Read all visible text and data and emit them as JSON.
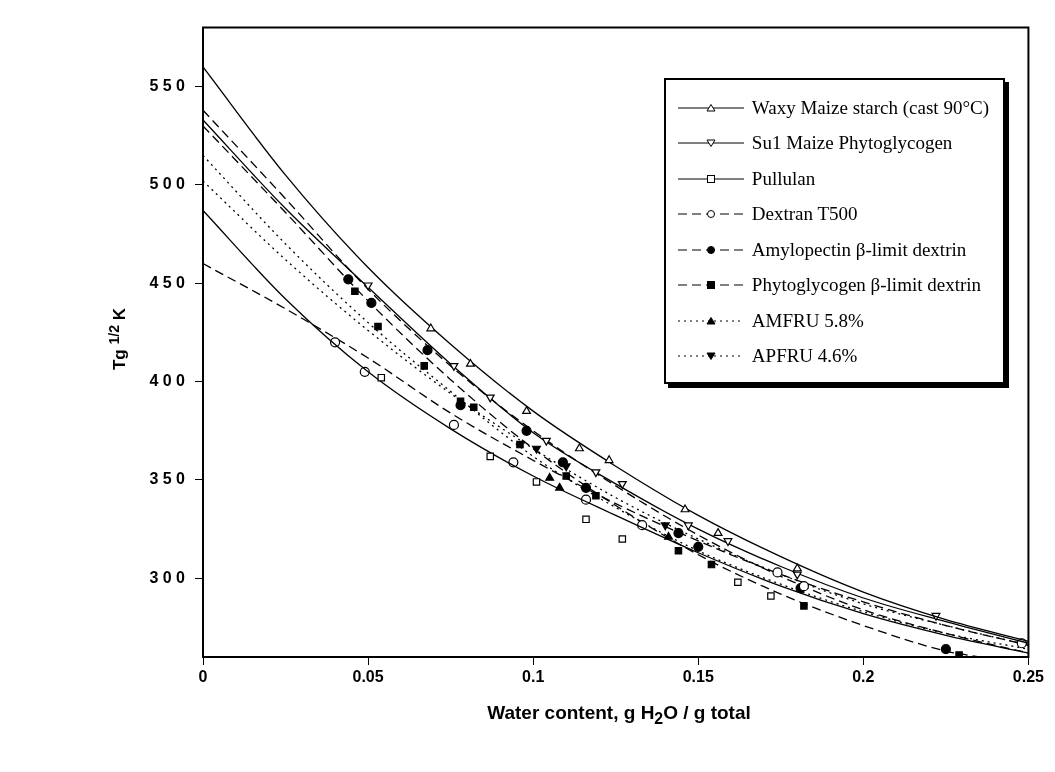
{
  "chart_data": {
    "type": "scatter",
    "xlabel": "Water content, g H$_{2}$O / g total",
    "ylabel": "Tg $^{1/2}$ K",
    "xlim": [
      0,
      0.25
    ],
    "xticks": [
      0,
      0.05,
      0.1,
      0.15,
      0.2,
      0.25
    ],
    "ylim": [
      260,
      580
    ],
    "yticks": [
      300,
      350,
      400,
      450,
      500,
      550
    ],
    "grid": false,
    "legend": "top right",
    "series": [
      {
        "name": "Waxy Maize starch (cast 90°C)",
        "marker": "triangle-open",
        "color": "#000000",
        "x": [
          0.069,
          0.081,
          0.098,
          0.114,
          0.123,
          0.146,
          0.156,
          0.18
        ],
        "values": [
          427,
          409,
          385,
          366,
          360,
          335,
          323,
          305
        ]
      },
      {
        "type": "line",
        "marker": "none",
        "line_style": "solid",
        "color": "#000000",
        "x": [
          0,
          0.025,
          0.05,
          0.075,
          0.1,
          0.125,
          0.15,
          0.175,
          0.2,
          0.225,
          0.25
        ],
        "values": [
          560,
          505,
          458,
          419,
          385,
          357,
          332,
          311,
          293,
          279,
          268
        ]
      },
      {
        "name": "Su1 Maize Phytoglycogen",
        "marker": "triangle-down-open",
        "color": "#000000",
        "x": [
          0.05,
          0.076,
          0.087,
          0.104,
          0.119,
          0.127,
          0.147,
          0.159,
          0.18,
          0.222
        ],
        "values": [
          449,
          408,
          392,
          370,
          354,
          348,
          327,
          319,
          302,
          281
        ]
      },
      {
        "type": "line",
        "marker": "none",
        "line_style": "solid",
        "color": "#000000",
        "x": [
          0,
          0.025,
          0.05,
          0.075,
          0.1,
          0.125,
          0.15,
          0.175,
          0.2,
          0.225,
          0.25
        ],
        "values": [
          533,
          488,
          448,
          409,
          374,
          348,
          325,
          306,
          290,
          278,
          267
        ]
      },
      {
        "name": "Pullulan",
        "marker": "square-open",
        "color": "#000000",
        "x": [
          0.054,
          0.087,
          0.101,
          0.116,
          0.127,
          0.162,
          0.172
        ],
        "values": [
          402,
          362,
          349,
          330,
          320,
          298,
          291
        ]
      },
      {
        "type": "line",
        "marker": "none",
        "line_style": "solid",
        "color": "#000000",
        "x": [
          0,
          0.025,
          0.05,
          0.075,
          0.1,
          0.125,
          0.15,
          0.175,
          0.2,
          0.225,
          0.25
        ],
        "values": [
          487,
          442,
          405,
          376,
          352,
          332,
          313,
          296,
          282,
          271,
          262
        ]
      },
      {
        "name": "Dextran T500",
        "marker": "circle-open",
        "color": "#000000",
        "x": [
          0.04,
          0.049,
          0.076,
          0.094,
          0.116,
          0.133,
          0.174,
          0.182,
          0.248
        ],
        "values": [
          420,
          405,
          378,
          359,
          340,
          327,
          303,
          296,
          267
        ]
      },
      {
        "type": "line",
        "marker": "none",
        "line_style": "dashed",
        "color": "#000000",
        "x": [
          0,
          0.025,
          0.05,
          0.075,
          0.1,
          0.125,
          0.15,
          0.175,
          0.2,
          0.225,
          0.25
        ],
        "values": [
          460,
          437,
          412,
          384,
          360,
          338,
          319,
          302,
          288,
          276,
          266
        ]
      },
      {
        "name": "Amylopectin β-limit dextrin",
        "marker": "circle",
        "color": "#000000",
        "x": [
          0.044,
          0.051,
          0.068,
          0.078,
          0.098,
          0.109,
          0.116,
          0.144,
          0.15,
          0.181,
          0.225
        ],
        "values": [
          452,
          440,
          416,
          388,
          375,
          359,
          346,
          323,
          316,
          295,
          264
        ]
      },
      {
        "type": "line",
        "marker": "none",
        "line_style": "dashed",
        "color": "#000000",
        "x": [
          0,
          0.025,
          0.05,
          0.075,
          0.1,
          0.125,
          0.15,
          0.175,
          0.2,
          0.225,
          0.25
        ],
        "values": [
          538,
          493,
          447,
          408,
          375,
          347,
          322,
          301,
          284,
          272,
          262
        ]
      },
      {
        "name": "Phytoglycogen β-limit dextrin",
        "marker": "square",
        "color": "#000000",
        "x": [
          0.046,
          0.053,
          0.067,
          0.078,
          0.082,
          0.096,
          0.11,
          0.119,
          0.144,
          0.154,
          0.182,
          0.229
        ],
        "values": [
          446,
          428,
          408,
          390,
          387,
          368,
          352,
          342,
          314,
          307,
          286,
          261
        ]
      },
      {
        "type": "line",
        "marker": "none",
        "line_style": "dashed",
        "color": "#000000",
        "x": [
          0,
          0.025,
          0.05,
          0.075,
          0.1,
          0.125,
          0.15,
          0.175,
          0.2,
          0.225,
          0.235
        ],
        "values": [
          530,
          486,
          441,
          401,
          366,
          337,
          312,
          292,
          276,
          263,
          260
        ]
      },
      {
        "name": "AMFRU 5.8%",
        "marker": "triangle",
        "color": "#000000",
        "x": [
          0.105,
          0.108,
          0.141
        ],
        "values": [
          351,
          346,
          321
        ]
      },
      {
        "type": "line",
        "marker": "none",
        "line_style": "dotted",
        "color": "#000000",
        "x": [
          0,
          0.025,
          0.05,
          0.075,
          0.1,
          0.125,
          0.15,
          0.175,
          0.2,
          0.225,
          0.25
        ],
        "values": [
          515,
          470,
          430,
          395,
          362,
          336,
          314,
          297,
          283,
          272,
          264
        ]
      },
      {
        "name": "APFRU 4.6%",
        "marker": "triangle-down",
        "color": "#000000",
        "x": [
          0.101,
          0.11,
          0.14
        ],
        "values": [
          366,
          357,
          327
        ]
      },
      {
        "type": "line",
        "marker": "none",
        "line_style": "dotted",
        "color": "#000000",
        "x": [
          0,
          0.025,
          0.05,
          0.075,
          0.1,
          0.125,
          0.15,
          0.175,
          0.2,
          0.225,
          0.25
        ],
        "values": [
          502,
          462,
          426,
          394,
          366,
          341,
          320,
          302,
          287,
          276,
          266
        ]
      }
    ]
  }
}
